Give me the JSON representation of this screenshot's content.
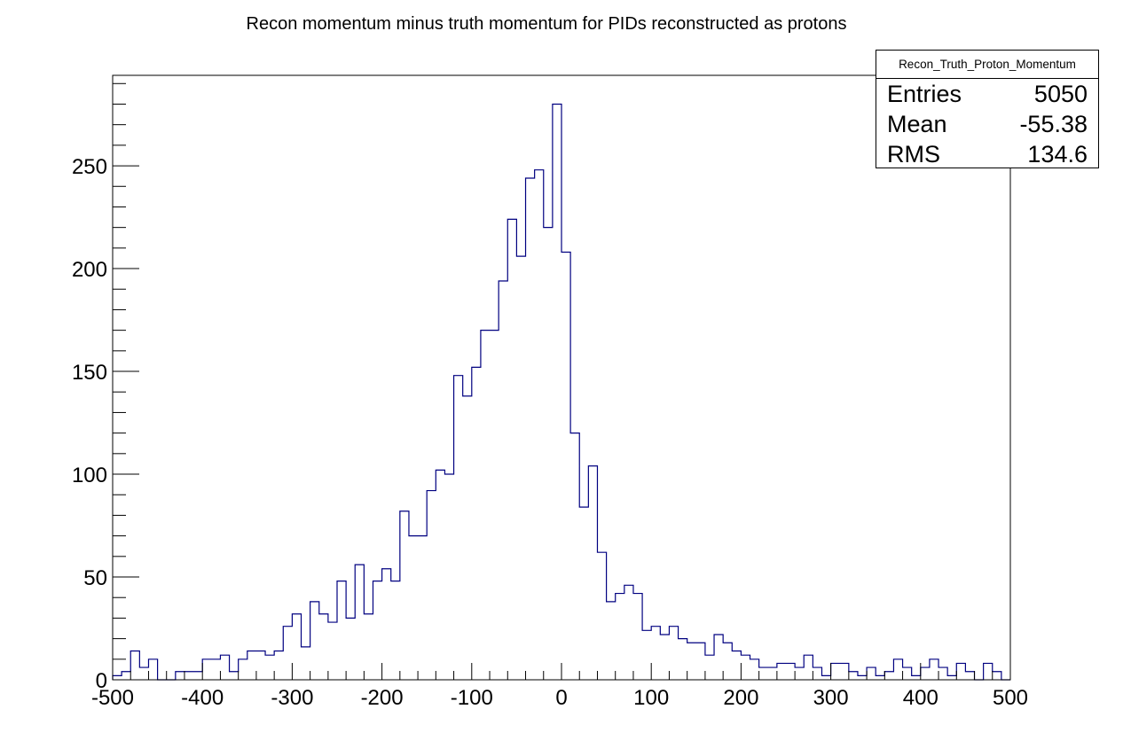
{
  "chart_data": {
    "type": "histogram",
    "title": "Recon momentum minus truth momentum for PIDs reconstructed as protons",
    "xlabel": "",
    "ylabel": "",
    "xlim": [
      -500,
      500
    ],
    "ylim": [
      0,
      294
    ],
    "bin_width": 10,
    "line_color": "#000080",
    "x_ticks": [
      -500,
      -400,
      -300,
      -200,
      -100,
      0,
      100,
      200,
      300,
      400,
      500
    ],
    "y_ticks": [
      0,
      50,
      100,
      150,
      200,
      250
    ],
    "bin_edges_start": -500,
    "counts": [
      2,
      4,
      14,
      6,
      10,
      0,
      0,
      4,
      4,
      4,
      10,
      10,
      12,
      4,
      10,
      14,
      14,
      12,
      14,
      26,
      32,
      16,
      38,
      32,
      28,
      48,
      30,
      56,
      32,
      48,
      54,
      48,
      82,
      70,
      70,
      92,
      102,
      100,
      148,
      138,
      152,
      170,
      170,
      194,
      224,
      206,
      244,
      248,
      220,
      280,
      208,
      120,
      84,
      104,
      62,
      38,
      42,
      46,
      42,
      24,
      26,
      22,
      26,
      20,
      18,
      18,
      12,
      22,
      18,
      14,
      12,
      10,
      6,
      6,
      8,
      8,
      6,
      12,
      6,
      2,
      8,
      8,
      4,
      2,
      6,
      2,
      4,
      10,
      6,
      2,
      6,
      10,
      6,
      2,
      8,
      4,
      0,
      8,
      4,
      0
    ]
  },
  "stats": {
    "name": "Recon_Truth_Proton_Momentum",
    "rows": [
      {
        "label": "Entries",
        "value": "5050"
      },
      {
        "label": "Mean",
        "value": "-55.38"
      },
      {
        "label": "RMS",
        "value": "134.6"
      }
    ]
  }
}
